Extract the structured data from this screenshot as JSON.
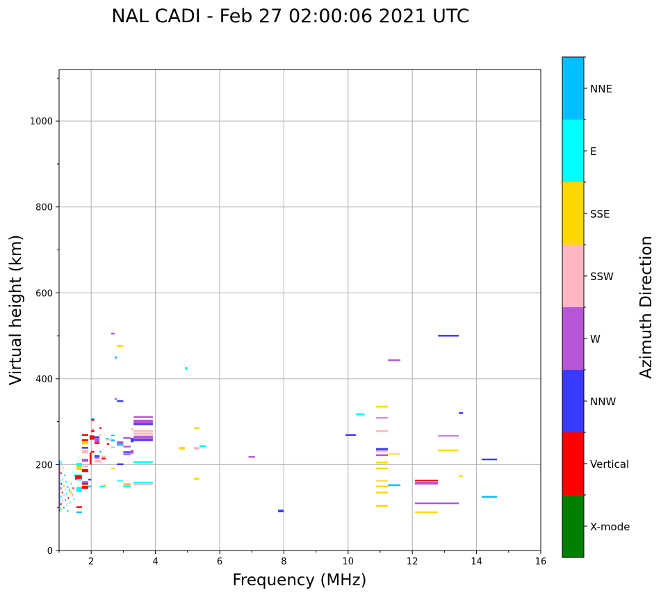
{
  "chart_data": {
    "type": "scatter",
    "title": "NAL CADI - Feb 27 02:00:06 2021 UTC",
    "xlabel": "Frequency (MHz)",
    "ylabel": "Virtual height (km)",
    "xlim": [
      1,
      16
    ],
    "ylim": [
      0,
      1120
    ],
    "xticks": [
      2,
      4,
      6,
      8,
      10,
      12,
      14,
      16
    ],
    "yticks": [
      0,
      200,
      400,
      600,
      800,
      1000
    ],
    "grid": true,
    "colorbar": {
      "label": "Azimuth Direction",
      "categories": [
        "X-mode",
        "Vertical",
        "NNW",
        "W",
        "SSW",
        "SSE",
        "E",
        "NNE"
      ],
      "colors": [
        "#008000",
        "#ff0000",
        "#3a3aff",
        "#b656d6",
        "#ffb6c1",
        "#ffd700",
        "#00ffff",
        "#00bfff"
      ]
    },
    "echo_fields": [
      "freq_start_MHz",
      "freq_end_MHz",
      "height_km",
      "direction_index",
      "height_span_km"
    ],
    "echoes": [
      [
        12.8,
        13.45,
        500,
        2,
        4
      ],
      [
        11.24,
        11.63,
        443,
        3,
        4
      ],
      [
        10.87,
        11.24,
        335,
        5,
        4
      ],
      [
        10.24,
        10.52,
        317,
        6,
        4
      ],
      [
        10.87,
        11.24,
        309,
        3,
        2
      ],
      [
        10.87,
        11.24,
        278,
        4,
        4
      ],
      [
        9.92,
        10.24,
        269,
        2,
        4
      ],
      [
        13.45,
        13.58,
        320,
        2,
        4
      ],
      [
        12.8,
        13.45,
        267,
        3,
        2
      ],
      [
        12.8,
        13.45,
        233,
        5,
        4
      ],
      [
        10.87,
        11.24,
        236,
        2,
        5
      ],
      [
        10.87,
        11.24,
        231,
        4,
        4
      ],
      [
        11.24,
        11.63,
        225,
        5,
        2
      ],
      [
        10.87,
        11.24,
        222,
        3,
        4
      ],
      [
        14.16,
        14.64,
        212,
        2,
        4
      ],
      [
        10.87,
        11.24,
        205,
        5,
        4
      ],
      [
        10.87,
        11.24,
        191,
        5,
        4
      ],
      [
        13.45,
        13.58,
        173,
        5,
        4
      ],
      [
        10.87,
        11.24,
        162,
        5,
        2
      ],
      [
        10.87,
        11.24,
        149,
        5,
        4
      ],
      [
        10.87,
        11.24,
        135,
        5,
        4
      ],
      [
        10.87,
        11.24,
        104,
        5,
        4
      ],
      [
        11.24,
        11.63,
        152,
        7,
        4
      ],
      [
        12.08,
        12.8,
        163,
        1,
        3
      ],
      [
        12.08,
        12.8,
        157,
        3,
        7
      ],
      [
        12.08,
        13.45,
        110,
        3,
        4
      ],
      [
        12.08,
        12.8,
        89,
        5,
        4
      ],
      [
        14.16,
        14.64,
        125,
        7,
        4
      ],
      [
        7.82,
        7.99,
        92,
        2,
        6
      ],
      [
        6.9,
        7.1,
        218,
        3,
        4
      ],
      [
        4.92,
        5.0,
        424,
        6,
        6
      ],
      [
        5.2,
        5.37,
        285,
        5,
        4
      ],
      [
        4.74,
        4.92,
        238,
        5,
        6
      ],
      [
        5.2,
        5.37,
        238,
        4,
        6
      ],
      [
        5.37,
        5.59,
        243,
        6,
        4
      ],
      [
        5.2,
        5.37,
        167,
        5,
        4
      ],
      [
        3.32,
        3.92,
        311,
        3,
        4
      ],
      [
        3.32,
        3.92,
        300,
        3,
        9
      ],
      [
        3.32,
        3.92,
        294,
        2,
        4
      ],
      [
        3.32,
        3.92,
        278,
        4,
        4
      ],
      [
        3.32,
        3.92,
        272,
        4,
        5
      ],
      [
        3.32,
        3.92,
        266,
        3,
        3
      ],
      [
        3.32,
        3.92,
        262,
        3,
        5
      ],
      [
        3.32,
        3.92,
        257,
        2,
        4
      ],
      [
        3.32,
        3.92,
        206,
        6,
        4
      ],
      [
        3.32,
        3.92,
        158,
        6,
        4
      ],
      [
        3.32,
        3.92,
        154,
        4,
        3
      ],
      [
        2.62,
        2.73,
        505,
        3,
        4
      ],
      [
        2.8,
        3.0,
        476,
        5,
        4
      ],
      [
        2.73,
        2.8,
        450,
        7,
        4
      ],
      [
        2.73,
        2.8,
        446,
        4,
        3
      ],
      [
        2.73,
        2.8,
        353,
        3,
        4
      ],
      [
        2.8,
        3.0,
        348,
        2,
        4
      ],
      [
        1.71,
        1.91,
        269,
        1,
        4
      ],
      [
        1.71,
        1.91,
        257,
        1,
        4
      ],
      [
        1.71,
        1.91,
        251,
        5,
        8
      ],
      [
        1.71,
        1.91,
        239,
        2,
        4
      ],
      [
        1.71,
        1.91,
        230,
        4,
        8
      ],
      [
        1.71,
        1.91,
        210,
        3,
        7
      ],
      [
        1.54,
        1.71,
        200,
        6,
        8
      ],
      [
        1.54,
        1.71,
        192,
        5,
        8
      ],
      [
        1.71,
        1.91,
        196,
        4,
        4
      ],
      [
        1.71,
        1.91,
        186,
        1,
        7
      ],
      [
        1.46,
        1.71,
        175,
        6,
        4
      ],
      [
        1.5,
        1.71,
        170,
        1,
        10
      ],
      [
        1.54,
        1.71,
        165,
        6,
        4
      ],
      [
        1.71,
        1.91,
        159,
        3,
        5
      ],
      [
        1.71,
        1.91,
        155,
        1,
        4
      ],
      [
        1.71,
        1.91,
        147,
        1,
        7
      ],
      [
        1.54,
        1.71,
        142,
        6,
        12
      ],
      [
        1.54,
        1.71,
        101,
        1,
        4
      ],
      [
        1.54,
        1.71,
        89,
        7,
        4
      ],
      [
        1.95,
        2.1,
        263,
        1,
        10
      ],
      [
        2.0,
        2.1,
        304,
        1,
        4
      ],
      [
        2.0,
        2.1,
        307,
        7,
        3
      ],
      [
        2.0,
        2.1,
        282,
        4,
        4
      ],
      [
        2.0,
        2.1,
        278,
        1,
        4
      ],
      [
        2.1,
        2.26,
        264,
        2,
        4
      ],
      [
        2.1,
        2.26,
        257,
        3,
        10
      ],
      [
        2.1,
        2.26,
        250,
        1,
        4
      ],
      [
        2.26,
        2.32,
        285,
        1,
        4
      ],
      [
        2.26,
        2.32,
        269,
        4,
        4
      ],
      [
        2.26,
        2.32,
        230,
        7,
        4
      ],
      [
        2.0,
        2.1,
        230,
        1,
        4
      ],
      [
        2.1,
        2.26,
        216,
        3,
        4
      ],
      [
        2.1,
        2.32,
        208,
        4,
        6
      ],
      [
        2.1,
        2.26,
        220,
        2,
        4
      ],
      [
        2.32,
        2.45,
        219,
        4,
        4
      ],
      [
        2.32,
        2.45,
        214,
        1,
        4
      ],
      [
        2.45,
        2.54,
        260,
        7,
        4
      ],
      [
        2.45,
        2.73,
        258,
        4,
        3
      ],
      [
        2.62,
        2.73,
        256,
        7,
        4
      ],
      [
        2.62,
        2.73,
        268,
        7,
        2
      ],
      [
        2.49,
        2.56,
        248,
        1,
        4
      ],
      [
        2.62,
        2.73,
        240,
        4,
        4
      ],
      [
        2.8,
        3.0,
        250,
        3,
        9
      ],
      [
        2.8,
        3.0,
        245,
        6,
        4
      ],
      [
        3.0,
        3.23,
        262,
        3,
        4
      ],
      [
        3.0,
        3.23,
        242,
        3,
        4
      ],
      [
        3.0,
        3.23,
        229,
        2,
        4
      ],
      [
        3.0,
        3.23,
        224,
        3,
        4
      ],
      [
        2.8,
        3.0,
        201,
        2,
        4
      ],
      [
        2.62,
        2.73,
        191,
        5,
        4
      ],
      [
        2.8,
        3.0,
        162,
        6,
        2
      ],
      [
        2.26,
        2.45,
        149,
        6,
        4
      ],
      [
        2.39,
        2.45,
        152,
        5,
        4
      ],
      [
        3.0,
        3.23,
        155,
        4,
        4
      ],
      [
        3.0,
        3.23,
        152,
        5,
        3
      ],
      [
        3.0,
        3.23,
        149,
        6,
        4
      ],
      [
        3.23,
        3.32,
        257,
        2,
        10
      ],
      [
        3.23,
        3.32,
        282,
        4,
        4
      ],
      [
        3.23,
        3.32,
        230,
        3,
        9
      ],
      [
        1.91,
        2.0,
        165,
        2,
        4
      ],
      [
        1.91,
        2.0,
        149,
        7,
        4
      ],
      [
        1.95,
        2.01,
        214,
        1,
        28
      ],
      [
        1.0,
        1.03,
        150,
        7,
        120
      ],
      [
        1.05,
        1.09,
        205,
        6,
        4
      ],
      [
        1.1,
        1.14,
        192,
        5,
        4
      ],
      [
        1.04,
        1.08,
        180,
        1,
        4
      ],
      [
        1.16,
        1.2,
        175,
        7,
        4
      ],
      [
        1.09,
        1.13,
        165,
        4,
        4
      ],
      [
        1.2,
        1.24,
        160,
        6,
        4
      ],
      [
        1.05,
        1.09,
        155,
        1,
        4
      ],
      [
        1.13,
        1.17,
        150,
        5,
        4
      ],
      [
        1.25,
        1.29,
        148,
        7,
        4
      ],
      [
        1.04,
        1.08,
        145,
        3,
        4
      ],
      [
        1.18,
        1.22,
        142,
        4,
        4
      ],
      [
        1.3,
        1.34,
        140,
        6,
        8
      ],
      [
        1.08,
        1.12,
        135,
        1,
        4
      ],
      [
        1.22,
        1.26,
        132,
        6,
        4
      ],
      [
        1.35,
        1.39,
        135,
        5,
        8
      ],
      [
        1.14,
        1.18,
        128,
        4,
        4
      ],
      [
        1.04,
        1.08,
        125,
        6,
        4
      ],
      [
        1.27,
        1.31,
        122,
        1,
        4
      ],
      [
        1.4,
        1.44,
        130,
        4,
        8
      ],
      [
        1.18,
        1.22,
        118,
        7,
        4
      ],
      [
        1.09,
        1.13,
        115,
        4,
        4
      ],
      [
        1.32,
        1.36,
        112,
        6,
        4
      ],
      [
        1.04,
        1.08,
        108,
        1,
        4
      ],
      [
        1.22,
        1.26,
        105,
        4,
        4
      ],
      [
        1.13,
        1.17,
        100,
        7,
        4
      ],
      [
        1.05,
        1.09,
        96,
        5,
        4
      ],
      [
        1.25,
        1.29,
        92,
        7,
        4
      ],
      [
        1.45,
        1.49,
        120,
        6,
        4
      ],
      [
        1.42,
        1.46,
        145,
        1,
        4
      ],
      [
        1.36,
        1.4,
        155,
        6,
        4
      ]
    ]
  }
}
